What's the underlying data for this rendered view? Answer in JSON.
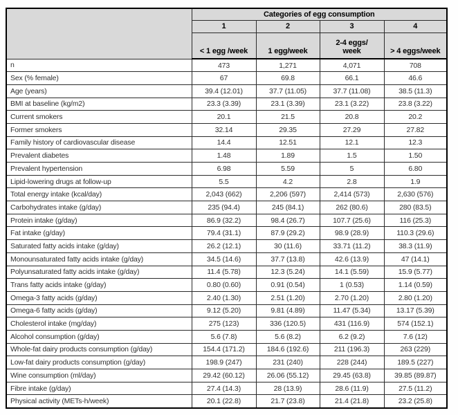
{
  "table": {
    "header": {
      "group_title": "Categories of egg consumption",
      "category_numbers": [
        "1",
        "2",
        "3",
        "4"
      ],
      "category_labels": [
        "< 1 egg /week",
        "1 egg/week",
        "2-4 eggs/\nweek",
        "> 4 eggs/week"
      ]
    },
    "rows": [
      {
        "label": "n",
        "values": [
          "473",
          "1,271",
          "4,071",
          "708"
        ]
      },
      {
        "label": "Sex (% female)",
        "values": [
          "67",
          "69.8",
          "66.1",
          "46.6"
        ]
      },
      {
        "label": "Age (years)",
        "values": [
          "39.4 (12.01)",
          "37.7 (11.05)",
          "37.7 (11.08)",
          "38.5 (11.3)"
        ]
      },
      {
        "label": "BMI at baseline (kg/m2)",
        "values": [
          "23.3 (3.39)",
          "23.1 (3.39)",
          "23.1 (3.22)",
          "23.8 (3.22)"
        ]
      },
      {
        "label": "Current smokers",
        "values": [
          "20.1",
          "21.5",
          "20.8",
          "20.2"
        ]
      },
      {
        "label": "Former smokers",
        "values": [
          "32.14",
          "29.35",
          "27.29",
          "27.82"
        ]
      },
      {
        "label": "Family history of cardiovascular disease",
        "values": [
          "14.4",
          "12.51",
          "12.1",
          "12.3"
        ]
      },
      {
        "label": "Prevalent diabetes",
        "values": [
          "1.48",
          "1.89",
          "1.5",
          "1.50"
        ]
      },
      {
        "label": "Prevalent hypertension",
        "values": [
          "6.98",
          "5.59",
          "5",
          "6.80"
        ]
      },
      {
        "label": "Lipid-lowering drugs at follow-up",
        "values": [
          "5.5",
          "4.2",
          "2.8",
          "1.9"
        ]
      },
      {
        "label": "Total energy intake (kcal/day)",
        "values": [
          "2,043 (662)",
          "2,206 (597)",
          "2,414 (573)",
          "2,630 (576)"
        ]
      },
      {
        "label": "Carbohydrates intake (g/day)",
        "values": [
          "235 (94.4)",
          "245 (84.1)",
          "262 (80.6)",
          "280 (83.5)"
        ]
      },
      {
        "label": "Protein intake (g/day)",
        "values": [
          "86.9 (32.2)",
          "98.4 (26.7)",
          "107.7 (25.6)",
          "116 (25.3)"
        ]
      },
      {
        "label": "Fat intake (g/day)",
        "values": [
          "79.4 (31.1)",
          "87.9 (29.2)",
          "98.9 (28.9)",
          "110.3 (29.6)"
        ]
      },
      {
        "label": "Saturated fatty acids intake (g/day)",
        "values": [
          "26.2 (12.1)",
          "30 (11.6)",
          "33.71 (11.2)",
          "38.3 (11.9)"
        ]
      },
      {
        "label": "Monounsaturated fatty acids intake (g/day)",
        "values": [
          "34.5 (14.6)",
          "37.7 (13.8)",
          "42.6 (13.9)",
          "47 (14.1)"
        ]
      },
      {
        "label": "Polyunsaturated fatty acids intake (g/day)",
        "values": [
          "11.4 (5.78)",
          "12.3 (5.24)",
          "14.1 (5.59)",
          "15.9 (5.77)"
        ]
      },
      {
        "label": "Trans fatty acids intake (g/day)",
        "values": [
          "0.80 (0.60)",
          "0.91 (0.54)",
          "1 (0.53)",
          "1.14 (0.59)"
        ]
      },
      {
        "label": "Omega-3 fatty acids (g/day)",
        "values": [
          "2.40 (1.30)",
          "2.51 (1.20)",
          "2.70 (1.20)",
          "2.80 (1.20)"
        ]
      },
      {
        "label": "Omega-6 fatty acids (g/day)",
        "values": [
          "9.12 (5.20)",
          "9.81 (4.89)",
          "11.47 (5.34)",
          "13.17 (5.39)"
        ]
      },
      {
        "label": "Cholesterol intake  (mg/day)",
        "values": [
          "275 (123)",
          "336 (120.5)",
          "431 (116.9)",
          "574 (152.1)"
        ]
      },
      {
        "label": "Alcohol consumption (g/day)",
        "values": [
          "5.6 (7.8)",
          "5.6 (8.2)",
          "6.2 (9.2)",
          "7.6 (12)"
        ]
      },
      {
        "label": "Whole-fat dairy products consumption (g/day)",
        "values": [
          "154.4 (171.2)",
          "184.6 (192.6)",
          "211 (196.3)",
          "263 (229)"
        ]
      },
      {
        "label": "Low-fat dairy products consumption (g/day)",
        "values": [
          "198.9 (247)",
          "231 (240)",
          "228 (244)",
          "189.5 (227)"
        ]
      },
      {
        "label": "Wine consumption (ml/day)",
        "values": [
          "29.42 (60.12)",
          "26.06 (55.12)",
          "29.45 (63.8)",
          "39.85 (89.87)"
        ]
      },
      {
        "label": "Fibre intake (g/day)",
        "values": [
          "27.4 (14.3)",
          "28 (13.9)",
          "28.6 (11.9)",
          "27.5 (11.2)"
        ]
      },
      {
        "label": "Physical activity (METs-h/week)",
        "values": [
          "20.1 (22.8)",
          "21.7 (23.8)",
          "21.4 (21.8)",
          "23.2 (25.8)"
        ]
      }
    ],
    "colors": {
      "header_bg": "#d9d9d9",
      "border": "#000000",
      "body_text": "#303030"
    }
  }
}
